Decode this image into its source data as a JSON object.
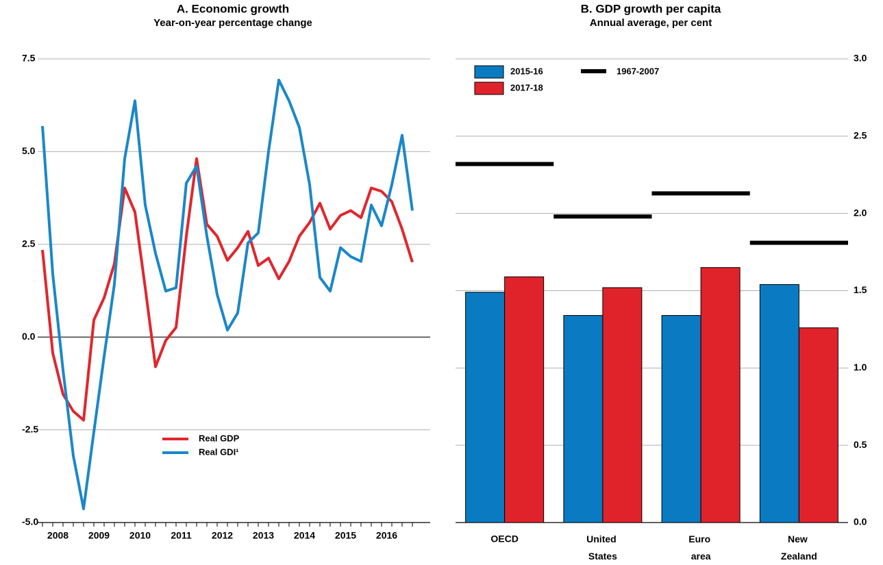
{
  "chart_data": [
    {
      "type": "line",
      "title": "A. Economic growth",
      "subtitle": "Year-on-year percentage change",
      "categories": [
        "2008",
        null,
        null,
        null,
        "2009",
        null,
        null,
        null,
        "2010",
        null,
        null,
        null,
        "2011",
        null,
        null,
        null,
        "2012",
        null,
        null,
        null,
        "2013",
        null,
        null,
        null,
        "2014",
        null,
        null,
        null,
        "2015",
        null,
        null,
        null,
        "2016",
        null,
        null,
        null,
        null
      ],
      "series": [
        {
          "name": "Real GDP",
          "color": "#e0262d",
          "values": [
            2.35,
            -0.43,
            -1.54,
            -2.0,
            -2.24,
            0.46,
            1.06,
            1.98,
            4.02,
            3.37,
            1.33,
            -0.8,
            -0.09,
            0.26,
            2.72,
            4.81,
            3.04,
            2.72,
            2.07,
            2.41,
            2.85,
            1.93,
            2.13,
            1.57,
            2.04,
            2.72,
            3.09,
            3.61,
            2.91,
            3.28,
            3.41,
            3.22,
            4.02,
            3.93,
            3.65,
            2.91,
            2.02
          ]
        },
        {
          "name": "Real GDI¹",
          "color": "#1b87c9",
          "values": [
            5.69,
            1.7,
            -0.89,
            -3.2,
            -4.63,
            -2.56,
            -0.52,
            1.43,
            4.81,
            6.37,
            3.56,
            2.26,
            1.24,
            1.33,
            4.15,
            4.61,
            2.72,
            1.15,
            0.19,
            0.65,
            2.54,
            2.81,
            5.0,
            6.93,
            6.37,
            5.65,
            4.11,
            1.61,
            1.24,
            2.41,
            2.17,
            2.04,
            3.56,
            3.0,
            4.11,
            5.44,
            3.41
          ]
        }
      ],
      "ylim": [
        -5,
        7.5
      ],
      "yticks": [
        {
          "value": -5,
          "label": "-5.0"
        },
        -2.5,
        {
          "value": 0,
          "label": "0.0"
        },
        2.5,
        {
          "value": 5,
          "label": "5.0"
        },
        7.5
      ],
      "grid": true
    },
    {
      "type": "bar",
      "title": "B. GDP growth per capita",
      "subtitle": "Annual average, per cent",
      "categories": [
        "OECD",
        "United States",
        "Euro area",
        "New Zealand"
      ],
      "series": [
        {
          "name": "2015-16",
          "color": "#0a7bc2",
          "style": "bar",
          "values": [
            1.49,
            1.34,
            1.34,
            1.54
          ]
        },
        {
          "name": "2017-18",
          "color": "#e0232a",
          "style": "bar",
          "values": [
            1.59,
            1.52,
            1.65,
            1.26
          ]
        },
        {
          "name": "1967-2007",
          "color": "#000000",
          "style": "hline",
          "values": [
            2.32,
            1.98,
            2.13,
            1.81
          ]
        }
      ],
      "ylim": [
        0,
        3
      ],
      "yticks": [
        {
          "value": 0,
          "label": "0.0"
        },
        0.5,
        {
          "value": 1,
          "label": "1.0"
        },
        1.5,
        {
          "value": 2,
          "label": "2.0"
        },
        2.5,
        {
          "value": 3,
          "label": "3.0"
        }
      ],
      "grid": true
    }
  ]
}
